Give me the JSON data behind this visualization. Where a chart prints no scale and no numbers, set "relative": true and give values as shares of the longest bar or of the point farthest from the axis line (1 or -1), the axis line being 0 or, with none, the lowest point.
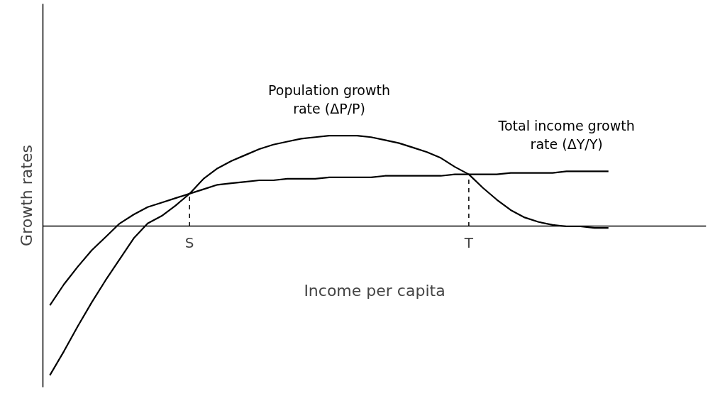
{
  "chart_data": {
    "type": "line",
    "relative": true,
    "xlabel": "Income per capita",
    "ylabel": "Growth rates",
    "grid": false,
    "marker": "none",
    "line_style": "solid",
    "categories": [
      null,
      null,
      null,
      null,
      null,
      null,
      null,
      null,
      null,
      null,
      "S",
      null,
      null,
      null,
      null,
      null,
      null,
      null,
      null,
      null,
      null,
      null,
      null,
      null,
      null,
      null,
      null,
      null,
      null,
      null,
      "T",
      null,
      null,
      null,
      null,
      null,
      null,
      null,
      null,
      null,
      null
    ],
    "series": [
      {
        "name": "Population growth rate (ΔP/P)",
        "color": "#000000",
        "values": [
          -1,
          -0.84,
          -0.67,
          -0.51,
          -0.36,
          -0.22,
          -0.08,
          0.02,
          0.07,
          0.14,
          0.22,
          0.32,
          0.39,
          0.44,
          0.48,
          0.52,
          0.55,
          0.57,
          0.59,
          0.6,
          0.61,
          0.61,
          0.61,
          0.6,
          0.58,
          0.56,
          0.53,
          0.5,
          0.46,
          0.4,
          0.35,
          0.26,
          0.18,
          0.11,
          0.06,
          0.03,
          0.01,
          0,
          0,
          -0.01,
          -0.01
        ]
      },
      {
        "name": "Total income growth rate (ΔY/Y)",
        "color": "#000000",
        "values": [
          -0.53,
          -0.39,
          -0.27,
          -0.16,
          -0.07,
          0.02,
          0.08,
          0.13,
          0.16,
          0.19,
          0.22,
          0.25,
          0.28,
          0.29,
          0.3,
          0.31,
          0.31,
          0.32,
          0.32,
          0.32,
          0.33,
          0.33,
          0.33,
          0.33,
          0.34,
          0.34,
          0.34,
          0.34,
          0.34,
          0.35,
          0.35,
          0.35,
          0.35,
          0.36,
          0.36,
          0.36,
          0.36,
          0.37,
          0.37,
          0.37,
          0.37
        ]
      }
    ],
    "ref_lines": [
      {
        "axis": "x",
        "value": "S",
        "line_style": "dashed"
      },
      {
        "axis": "x",
        "value": "T",
        "line_style": "dashed"
      }
    ]
  }
}
